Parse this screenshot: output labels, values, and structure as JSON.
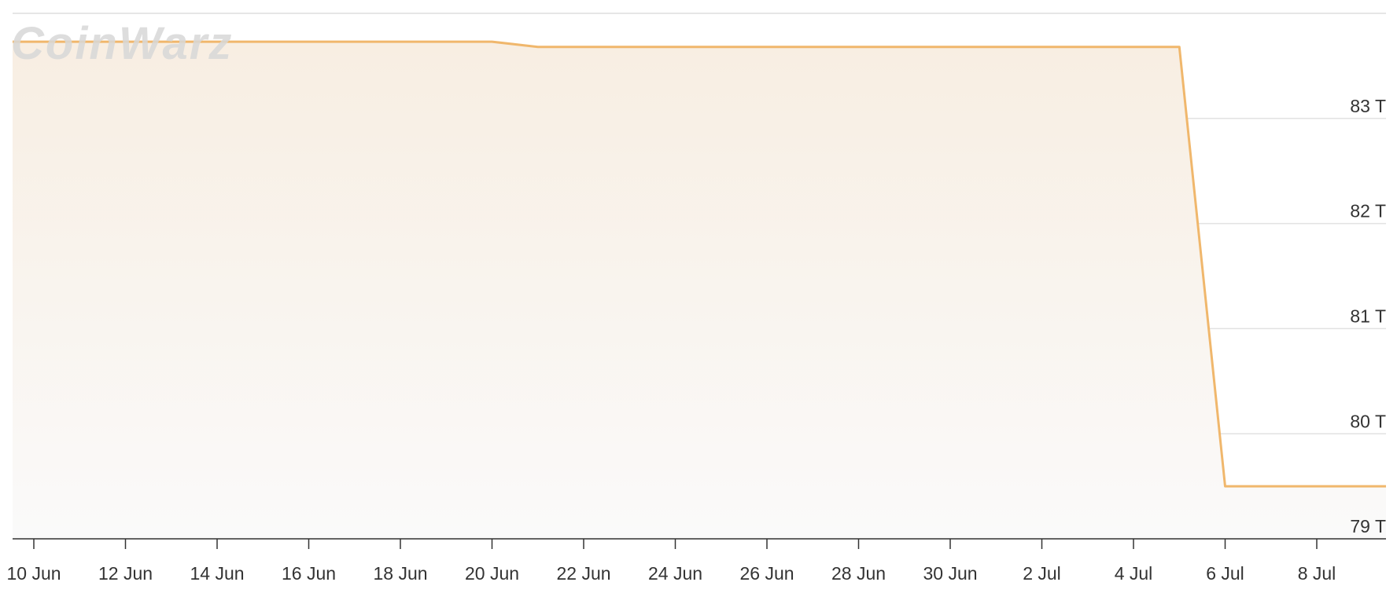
{
  "chart_data": {
    "type": "area",
    "watermark": "CoinWarz",
    "categories": [
      null,
      "10 Jun",
      null,
      "12 Jun",
      null,
      "14 Jun",
      null,
      "16 Jun",
      null,
      "18 Jun",
      null,
      "20 Jun",
      null,
      "22 Jun",
      null,
      "24 Jun",
      null,
      "26 Jun",
      null,
      "28 Jun",
      null,
      "30 Jun",
      null,
      "2 Jul",
      null,
      "4 Jul",
      null,
      "6 Jul",
      null,
      "8 Jul",
      null,
      null
    ],
    "series": [
      {
        "color": "#f0b76c",
        "values": [
          83.73,
          83.73,
          83.73,
          83.73,
          83.73,
          83.73,
          83.73,
          83.73,
          83.73,
          83.73,
          83.73,
          83.73,
          83.68,
          83.68,
          83.68,
          83.68,
          83.68,
          83.68,
          83.68,
          83.68,
          83.68,
          83.68,
          83.68,
          83.68,
          83.68,
          83.68,
          83.68,
          79.5,
          79.5,
          79.5,
          79.5,
          79.5
        ]
      }
    ],
    "ylim": [
      79,
      84
    ],
    "yticks": [
      {
        "value": 79,
        "label": "79 T"
      },
      {
        "value": 80,
        "label": "80 T"
      },
      {
        "value": 81,
        "label": "81 T"
      },
      {
        "value": 82,
        "label": "82 T"
      },
      {
        "value": 83,
        "label": "83 T"
      }
    ],
    "grid": true
  }
}
